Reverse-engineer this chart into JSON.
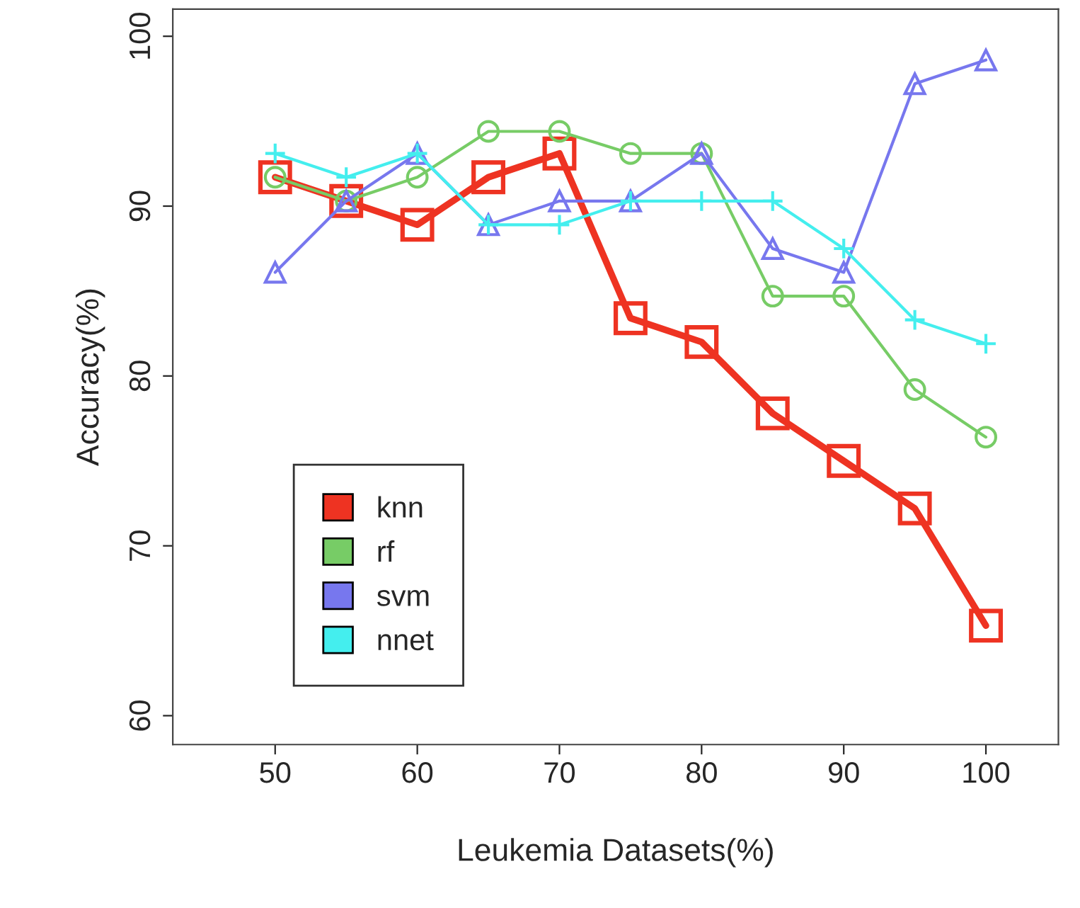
{
  "chart_data": {
    "type": "line",
    "xlabel": "Leukemia Datasets(%)",
    "ylabel": "Accuracy(%)",
    "x": [
      50,
      55,
      60,
      65,
      70,
      75,
      80,
      85,
      90,
      95,
      100
    ],
    "xlim": [
      42.8,
      105.1
    ],
    "xticks": [
      50,
      60,
      70,
      80,
      90,
      100
    ],
    "ylim": [
      58.3,
      101.6
    ],
    "yticks": [
      60,
      70,
      80,
      90,
      100
    ],
    "grid": false,
    "legend": "bottom left",
    "line_style": "solid",
    "series": [
      {
        "name": "knn",
        "color": "#ee3322",
        "marker": "square",
        "values": [
          91.7,
          90.3,
          88.9,
          91.7,
          93.1,
          83.4,
          82.0,
          77.8,
          75.0,
          72.2,
          65.3
        ]
      },
      {
        "name": "rf",
        "color": "#77cc66",
        "marker": "circle",
        "values": [
          91.7,
          90.3,
          91.7,
          94.4,
          94.4,
          93.1,
          93.1,
          84.7,
          84.7,
          79.2,
          76.4
        ]
      },
      {
        "name": "svm",
        "color": "#7777ee",
        "marker": "triangle",
        "values": [
          86.1,
          90.3,
          93.1,
          88.9,
          90.3,
          90.3,
          93.1,
          87.5,
          86.1,
          97.2,
          98.6
        ]
      },
      {
        "name": "nnet",
        "color": "#44eeee",
        "marker": "cross",
        "values": [
          93.1,
          91.7,
          93.1,
          88.9,
          88.9,
          90.3,
          90.3,
          90.3,
          87.5,
          83.3,
          81.9
        ]
      }
    ]
  }
}
